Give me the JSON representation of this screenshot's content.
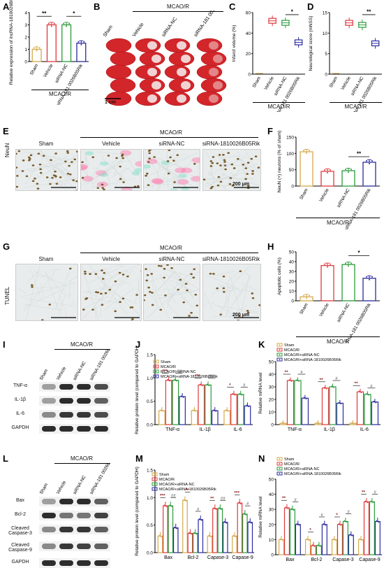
{
  "colors": {
    "sham": "#d4a94a",
    "mcao": "#e0373b",
    "nc": "#2a9a3a",
    "sirna": "#2a2a9e",
    "brain": "#d2262b",
    "nucleus": "#7a5a2a",
    "tissue": "#e8ecec"
  },
  "panels": {
    "A": "A",
    "B": "B",
    "C": "C",
    "D": "D",
    "E": "E",
    "F": "F",
    "G": "G",
    "H": "H",
    "I": "I",
    "J": "J",
    "K": "K",
    "L": "L",
    "M": "M",
    "N": "N"
  },
  "groups": {
    "sham": "Sham",
    "vehicle": "Vehicle",
    "nc": "siRNA-NC",
    "sirna_full": "siRNA-1810026B05Rik",
    "sirna_short": "siRNA-181 0026B05Rik",
    "mcao": "MCAO/R"
  },
  "panelA": {
    "ylabel": "Relative expression of lncRNA-1810026B05Rik",
    "yticks": [
      "0",
      "1",
      "2",
      "3",
      "4"
    ],
    "sig1": "**",
    "sig2": "*"
  },
  "panelB": {
    "scale": "1 cm"
  },
  "panelC": {
    "ylabel": "Infarct volume (%)",
    "yticks": [
      "0",
      "20",
      "40",
      "60"
    ],
    "sig": "*"
  },
  "panelD": {
    "ylabel": "Neurological score (mNSS)",
    "yticks": [
      "0",
      "5",
      "10",
      "15"
    ],
    "sig": "**"
  },
  "panelE": {
    "stain": "NeuN",
    "scale": "200 μm"
  },
  "panelF": {
    "ylabel": "NeuN (+) neurons (% of sham)",
    "yticks": [
      "0",
      "50",
      "100",
      "150"
    ],
    "sig": "**"
  },
  "panelG": {
    "stain": "TUNEL",
    "scale": "200 μm"
  },
  "panelH": {
    "ylabel": "Apoptotic cells (%)",
    "yticks": [
      "0",
      "10",
      "20",
      "30",
      "40",
      "50"
    ],
    "sig": "*"
  },
  "panelI": {
    "proteins": [
      "TNF-α",
      "IL-1β",
      "IL-6",
      "GAPDH"
    ]
  },
  "panelJ": {
    "ylabel": "Relative protein level (compared to GAPDH)",
    "yticks": [
      "0.0",
      "0.5",
      "1.0",
      "1.5"
    ],
    "xcats": [
      "TNF-α",
      "IL-1β",
      "IL-6"
    ],
    "sigs": [
      "***",
      "##",
      "***",
      "###",
      "*",
      "#"
    ]
  },
  "panelK": {
    "ylabel": "Relative mRNA level",
    "yticks": [
      "0",
      "10",
      "20",
      "30",
      "40",
      "50"
    ],
    "xcats": [
      "TNF-α",
      "IL-1β",
      "IL-6"
    ],
    "sigs": [
      "**",
      "#",
      "**",
      "#",
      "**",
      "#"
    ]
  },
  "panelL": {
    "proteins": [
      "Bax",
      "Bcl-2",
      "Cleaved Caspase-3",
      "Cleaved Caspase-9",
      "GAPDH"
    ]
  },
  "panelM": {
    "ylabel": "Relative protein level (compared to GAPDH)",
    "yticks": [
      "0.0",
      "0.5",
      "1.0",
      "1.5"
    ],
    "xcats": [
      "Bax",
      "Bcl-2",
      "Capase-3",
      "Capase-9"
    ],
    "sigs": [
      "***",
      "##",
      "**",
      "#",
      "**",
      "##",
      "***",
      "#"
    ]
  },
  "panelN": {
    "ylabel": "Relative mRNA level",
    "yticks": [
      "0",
      "10",
      "20",
      "30",
      "40",
      "50"
    ],
    "xcats": [
      "Bax",
      "Bcl-2",
      "Capase-3",
      "Capase-9"
    ],
    "sigs": [
      "**",
      "#",
      "*",
      "#",
      "*",
      "#",
      "**",
      "#"
    ]
  },
  "legend": {
    "sham": "Sham",
    "mcao": "MCAO/R",
    "nc": "MCAO/R+siRNA-NC",
    "sirna": "MCAO/R+siRNA-1810026B05Rik"
  },
  "chart_data": [
    {
      "panel": "A",
      "type": "bar",
      "categories": [
        "Sham",
        "Vehicle",
        "siRNA-NC",
        "siRNA-1810026B05Rik"
      ],
      "values": [
        1.0,
        3.0,
        3.0,
        1.5
      ],
      "ylabel": "Relative expression of lncRNA-1810026B05Rik",
      "ylim": [
        0,
        4
      ]
    },
    {
      "panel": "C",
      "type": "box",
      "categories": [
        "Sham",
        "Vehicle",
        "siRNA-NC",
        "siRNA-1810026B05Rik"
      ],
      "values": [
        0,
        52,
        50,
        31
      ],
      "ylabel": "Infarct volume (%)",
      "ylim": [
        0,
        60
      ]
    },
    {
      "panel": "D",
      "type": "box",
      "categories": [
        "Sham",
        "Vehicle",
        "siRNA-NC",
        "siRNA-1810026B05Rik"
      ],
      "values": [
        0,
        12.5,
        12,
        7.5
      ],
      "ylabel": "Neurological score (mNSS)",
      "ylim": [
        0,
        15
      ]
    },
    {
      "panel": "F",
      "type": "bar",
      "categories": [
        "Sham",
        "Vehicle",
        "siRNA-NC",
        "siRNA-1810026B05Rik"
      ],
      "values": [
        105,
        45,
        47,
        73
      ],
      "ylabel": "NeuN (+) neurons (% of sham)",
      "ylim": [
        0,
        150
      ]
    },
    {
      "panel": "H",
      "type": "bar",
      "categories": [
        "Sham",
        "Vehicle",
        "siRNA-NC",
        "siRNA-1810026B05Rik"
      ],
      "values": [
        4,
        36,
        37,
        23
      ],
      "ylabel": "Apoptotic cells (%)",
      "ylim": [
        0,
        50
      ]
    },
    {
      "panel": "J",
      "type": "bar",
      "categories": [
        "TNF-α",
        "IL-1β",
        "IL-6"
      ],
      "series": [
        {
          "name": "Sham",
          "values": [
            0.3,
            0.3,
            0.3
          ]
        },
        {
          "name": "MCAO/R",
          "values": [
            0.95,
            0.85,
            0.65
          ]
        },
        {
          "name": "MCAO/R+siRNA-NC",
          "values": [
            0.95,
            0.85,
            0.65
          ]
        },
        {
          "name": "MCAO/R+siRNA-1810026B05Rik",
          "values": [
            0.6,
            0.3,
            0.4
          ]
        }
      ],
      "ylabel": "Relative protein level (compared to GAPDH)",
      "ylim": [
        0,
        1.5
      ]
    },
    {
      "panel": "K",
      "type": "bar",
      "categories": [
        "TNF-α",
        "IL-1β",
        "IL-6"
      ],
      "series": [
        {
          "name": "Sham",
          "values": [
            1,
            1,
            1
          ]
        },
        {
          "name": "MCAO/R",
          "values": [
            35,
            29,
            26
          ]
        },
        {
          "name": "MCAO/R+siRNA-NC",
          "values": [
            35,
            30,
            24
          ]
        },
        {
          "name": "MCAO/R+siRNA-1810026B05Rik",
          "values": [
            21,
            17,
            18
          ]
        }
      ],
      "ylabel": "Relative mRNA level",
      "ylim": [
        0,
        50
      ]
    },
    {
      "panel": "M",
      "type": "bar",
      "categories": [
        "Bax",
        "Bcl-2",
        "Capase-3",
        "Capase-9"
      ],
      "series": [
        {
          "name": "Sham",
          "values": [
            0.3,
            0.95,
            0.3,
            0.3
          ]
        },
        {
          "name": "MCAO/R",
          "values": [
            0.85,
            0.35,
            0.8,
            0.9
          ]
        },
        {
          "name": "MCAO/R+siRNA-NC",
          "values": [
            0.85,
            0.35,
            0.8,
            0.7
          ]
        },
        {
          "name": "MCAO/R+siRNA-1810026B05Rik",
          "values": [
            0.45,
            0.6,
            0.55,
            0.55
          ]
        }
      ],
      "ylabel": "Relative protein level (compared to GAPDH)",
      "ylim": [
        0,
        1.5
      ]
    },
    {
      "panel": "N",
      "type": "bar",
      "categories": [
        "Bax",
        "Bcl-2",
        "Capase-3",
        "Capase-9"
      ],
      "series": [
        {
          "name": "Sham",
          "values": [
            10,
            10,
            10,
            10
          ]
        },
        {
          "name": "MCAO/R",
          "values": [
            31,
            6,
            20,
            35
          ]
        },
        {
          "name": "MCAO/R+siRNA-NC",
          "values": [
            30,
            6,
            22,
            35
          ]
        },
        {
          "name": "MCAO/R+siRNA-1810026B05Rik",
          "values": [
            20,
            20,
            13,
            22
          ]
        }
      ],
      "ylabel": "Relative mRNA level",
      "ylim": [
        0,
        50
      ]
    }
  ]
}
